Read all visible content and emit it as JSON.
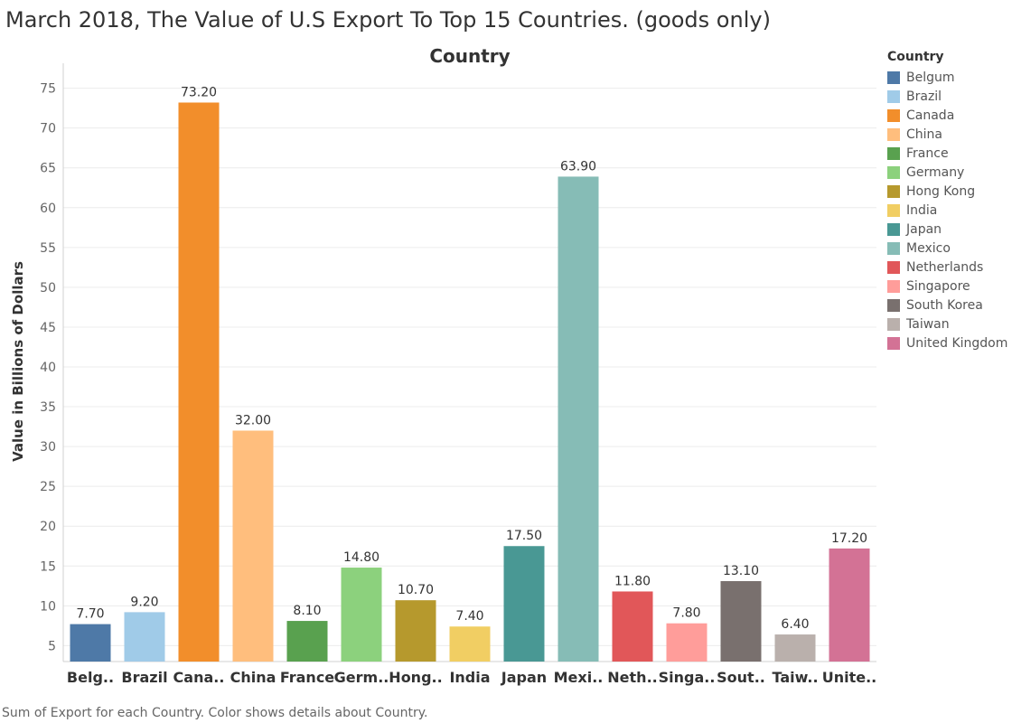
{
  "title": "March 2018, The Value of U.S Export To Top 15 Countries. (goods only)",
  "footer": "Sum of Export for each Country.  Color shows details about Country.",
  "chart_data": {
    "type": "bar",
    "title": "Country",
    "xlabel": "",
    "ylabel": "Value in Billions of Dollars",
    "ylim": [
      3,
      77
    ],
    "yticks": [
      5,
      10,
      15,
      20,
      25,
      30,
      35,
      40,
      45,
      50,
      55,
      60,
      65,
      70,
      75
    ],
    "grid": true,
    "legend_position": "right",
    "legend_title": "Country",
    "categories": [
      "Belgum",
      "Brazil",
      "Canada",
      "China",
      "France",
      "Germany",
      "Hong Kong",
      "India",
      "Japan",
      "Mexico",
      "Netherlands",
      "Singapore",
      "South Korea",
      "Taiwan",
      "United Kingdom"
    ],
    "tick_labels": [
      "Belg..",
      "Brazil",
      "Cana..",
      "China",
      "France",
      "Germ..",
      "Hong..",
      "India",
      "Japan",
      "Mexi..",
      "Neth..",
      "Singa..",
      "Sout..",
      "Taiw..",
      "Unite.."
    ],
    "values": [
      7.7,
      9.2,
      73.2,
      32.0,
      8.1,
      14.8,
      10.7,
      7.4,
      17.5,
      63.9,
      11.8,
      7.8,
      13.1,
      6.4,
      17.2
    ],
    "value_labels": [
      "7.70",
      "9.20",
      "73.20",
      "32.00",
      "8.10",
      "14.80",
      "10.70",
      "7.40",
      "17.50",
      "63.90",
      "11.80",
      "7.80",
      "13.10",
      "6.40",
      "17.20"
    ],
    "colors": [
      "#4e79a7",
      "#a0cbe8",
      "#f28e2b",
      "#ffbe7d",
      "#59a14f",
      "#8cd17d",
      "#b6992d",
      "#f1ce63",
      "#499894",
      "#86bcb6",
      "#e15759",
      "#ff9d9a",
      "#79706e",
      "#bab0ac",
      "#d37295"
    ]
  }
}
